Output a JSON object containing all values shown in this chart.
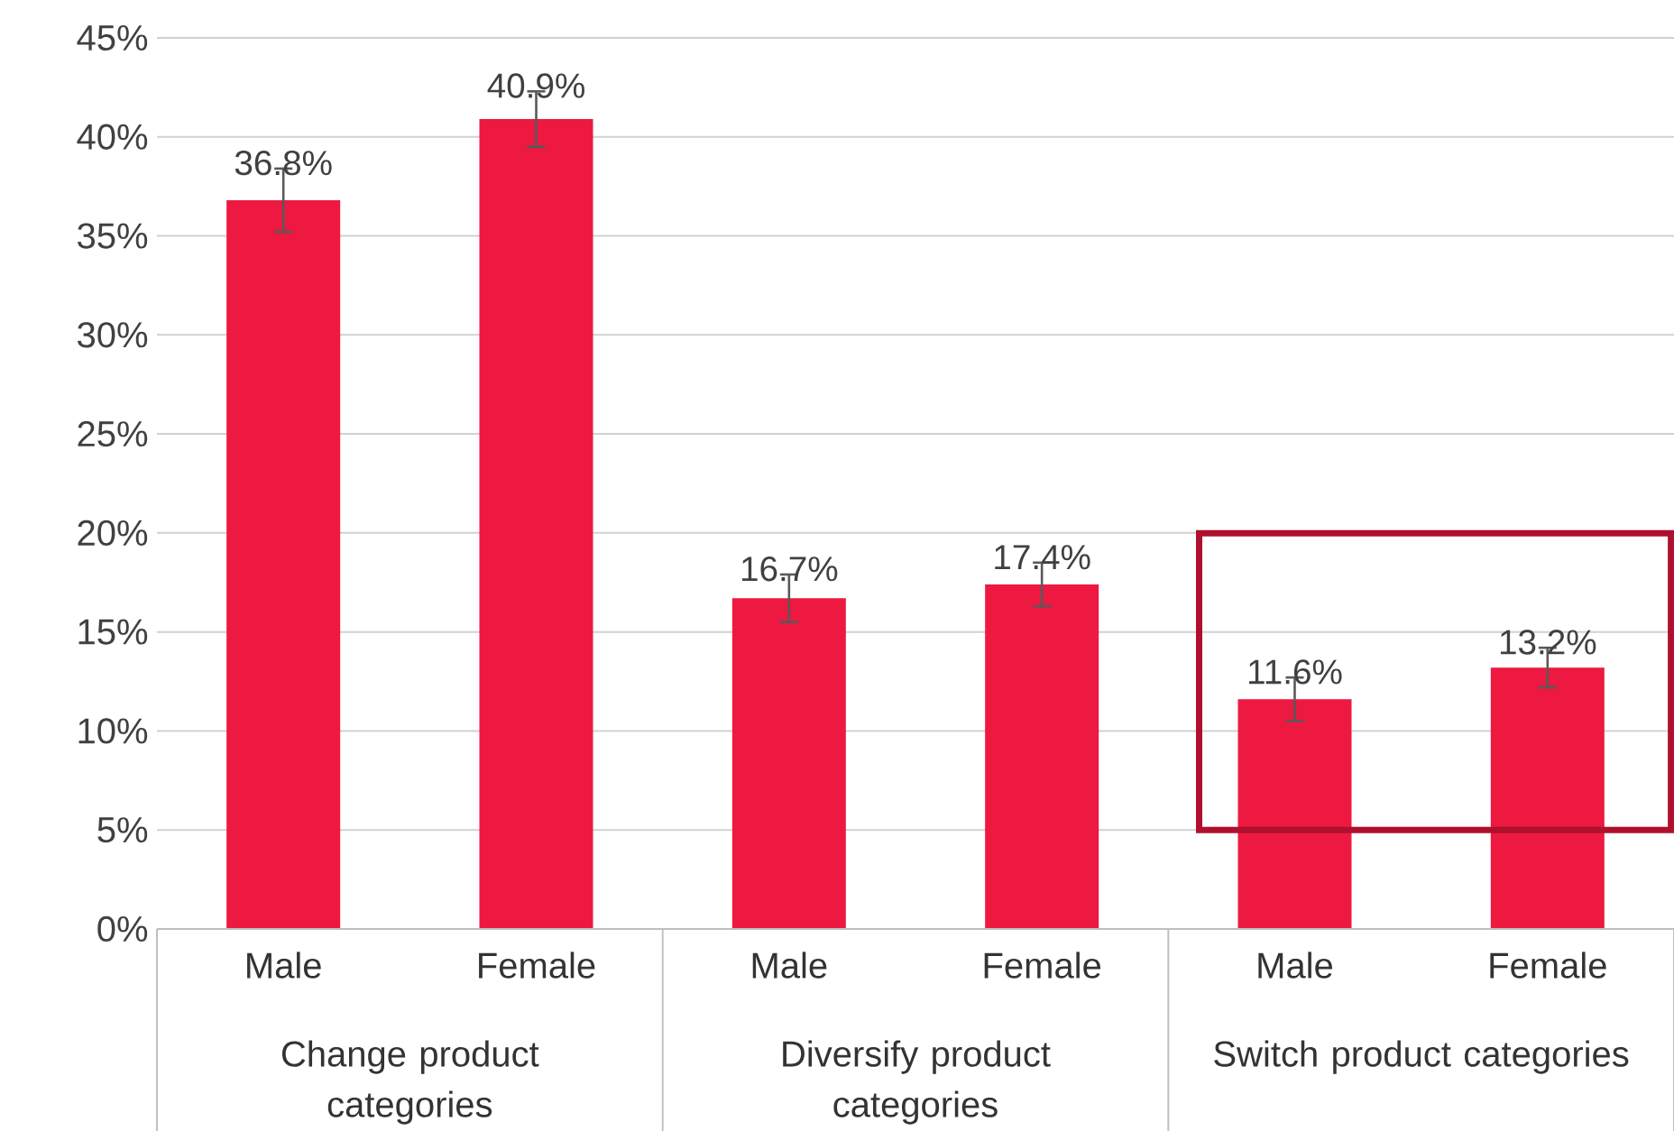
{
  "chart_data": {
    "type": "bar",
    "categories": [
      "Male",
      "Female",
      "Male",
      "Female",
      "Male",
      "Female"
    ],
    "values": [
      36.8,
      40.9,
      16.7,
      17.4,
      11.6,
      13.2
    ],
    "errors": [
      1.6,
      1.4,
      1.2,
      1.1,
      1.1,
      1.0
    ],
    "value_labels": [
      "36.8%",
      "40.9%",
      "16.7%",
      "17.4%",
      "11.6%",
      "13.2%"
    ],
    "color": "#ed1941",
    "ylim": [
      0,
      45
    ],
    "yticks": [
      {
        "value": 0,
        "label": "0%"
      },
      {
        "value": 5,
        "label": "5%"
      },
      {
        "value": 10,
        "label": "10%"
      },
      {
        "value": 15,
        "label": "15%"
      },
      {
        "value": 20,
        "label": "20%"
      },
      {
        "value": 25,
        "label": "25%"
      },
      {
        "value": 30,
        "label": "30%"
      },
      {
        "value": 35,
        "label": "35%"
      },
      {
        "value": 40,
        "label": "40%"
      },
      {
        "value": 45,
        "label": "45%"
      }
    ],
    "grid": "y",
    "annotations": [
      "Change product categories",
      "Diversify product categories",
      "Switch product categories"
    ]
  }
}
